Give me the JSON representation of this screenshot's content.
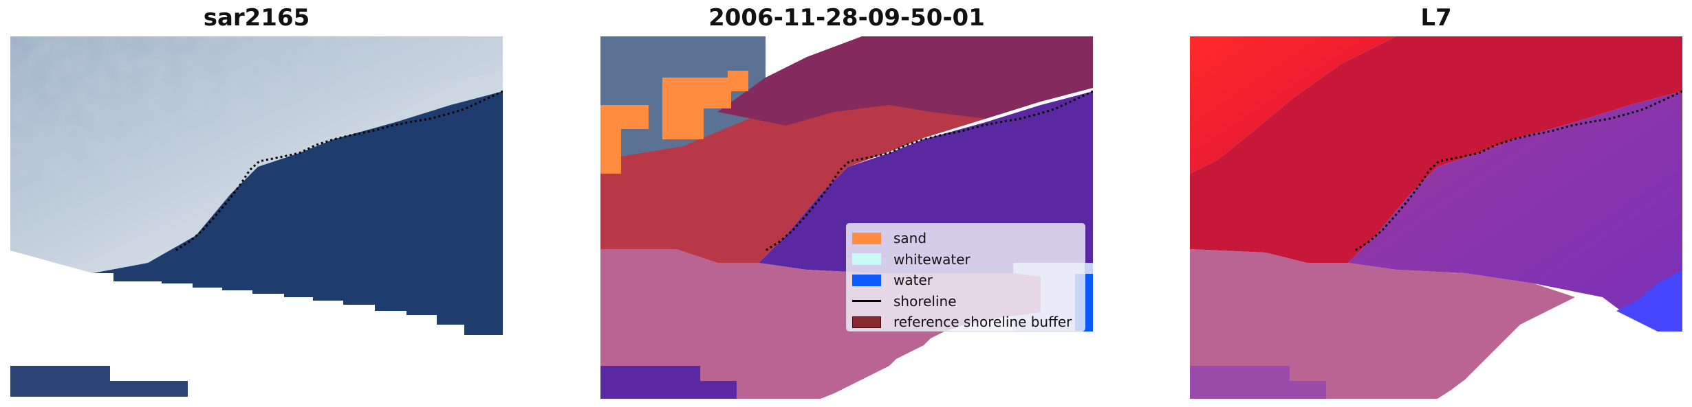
{
  "panels": [
    {
      "title": "sar2165"
    },
    {
      "title": "2006-11-28-09-50-01"
    },
    {
      "title": "L7"
    }
  ],
  "legend": {
    "items": [
      {
        "label": "sand",
        "color": "#ff8c40",
        "kind": "patch"
      },
      {
        "label": "whitewater",
        "color": "#c8faf8",
        "kind": "patch"
      },
      {
        "label": "water",
        "color": "#0a5aff",
        "kind": "patch"
      },
      {
        "label": "shoreline",
        "color": "#000000",
        "kind": "line"
      },
      {
        "label": "reference shoreline buffer",
        "color": "#8b2a2e",
        "kind": "patch"
      }
    ]
  },
  "colors": {
    "ocean_dark": "#1e3c6e",
    "beach_light": "#b6c6d8",
    "land_red_bright": "#ff2226",
    "land_crimson": "#c8183a",
    "class_sand": "#ff8c40",
    "class_water_purple": "#5a28a0",
    "buffer_red": "#b83848",
    "nodata_pink": "#b96493",
    "shoreline": "#000000"
  }
}
